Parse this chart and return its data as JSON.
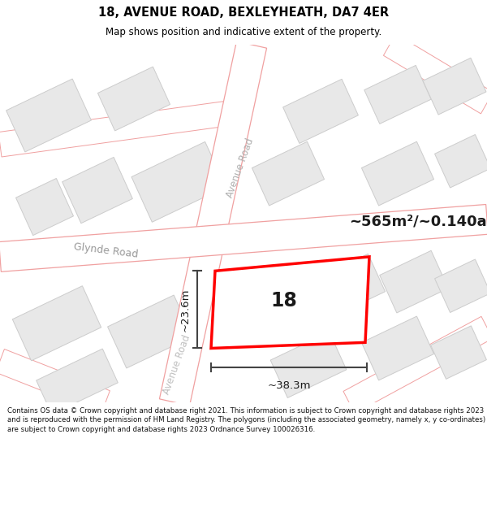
{
  "title": "18, AVENUE ROAD, BEXLEYHEATH, DA7 4ER",
  "subtitle": "Map shows position and indicative extent of the property.",
  "footer": "Contains OS data © Crown copyright and database right 2021. This information is subject to Crown copyright and database rights 2023 and is reproduced with the permission of HM Land Registry. The polygons (including the associated geometry, namely x, y co-ordinates) are subject to Crown copyright and database rights 2023 Ordnance Survey 100026316.",
  "area_text": "~565m²/~0.140ac.",
  "width_text": "~38.3m",
  "height_text": "~23.6m",
  "number_text": "18",
  "road1_label": "Avenue Road",
  "road2_label": "Glynde Road",
  "road3_label": "Avenue Road",
  "map_bg": "#f7f7f7",
  "road_fill": "#ffffff",
  "road_edge": "#f0a0a0",
  "plot_fill": "#e8e8e8",
  "plot_edge": "#cccccc",
  "highlight_color": "#ff0000",
  "dim_line_color": "#444444",
  "road_label_color": "#aaaaaa",
  "glynde_label_color": "#999999",
  "text_dark": "#1a1a1a"
}
